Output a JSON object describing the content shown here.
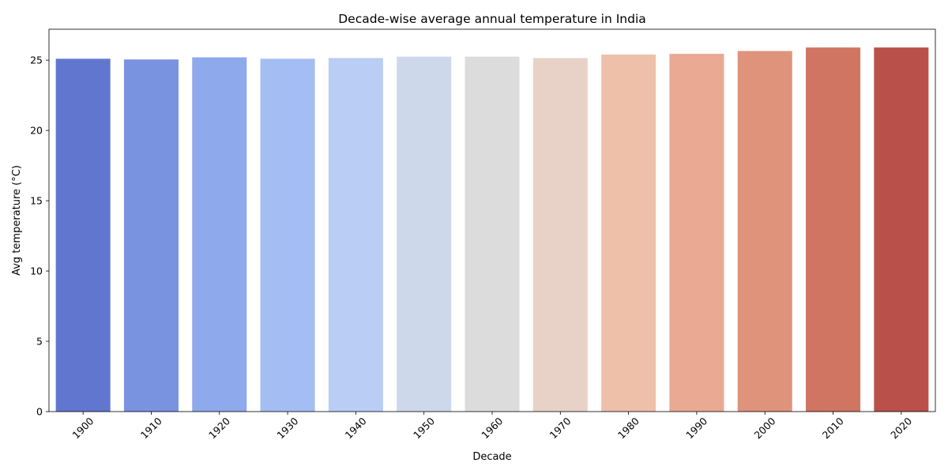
{
  "chart_data": {
    "type": "bar",
    "title": "Decade-wise average annual temperature in India",
    "xlabel": "Decade",
    "ylabel": "Avg temperature (°C)",
    "categories": [
      "1900",
      "1910",
      "1920",
      "1930",
      "1940",
      "1950",
      "1960",
      "1970",
      "1980",
      "1990",
      "2000",
      "2010",
      "2020"
    ],
    "values": [
      25.1,
      25.05,
      25.2,
      25.1,
      25.15,
      25.25,
      25.25,
      25.15,
      25.4,
      25.45,
      25.65,
      25.9,
      25.9
    ],
    "colors": [
      "#6177cf",
      "#7993e0",
      "#8ea9ec",
      "#a4bdf3",
      "#b9cdf5",
      "#cdd8eb",
      "#dcdcdc",
      "#e8d2c8",
      "#eec0aa",
      "#e9a993",
      "#e0937b",
      "#cf7562",
      "#b9504a"
    ],
    "ylim": [
      0,
      27.2
    ],
    "yticks": [
      0,
      5,
      10,
      15,
      20,
      25
    ],
    "grid": false,
    "legend": "none"
  }
}
